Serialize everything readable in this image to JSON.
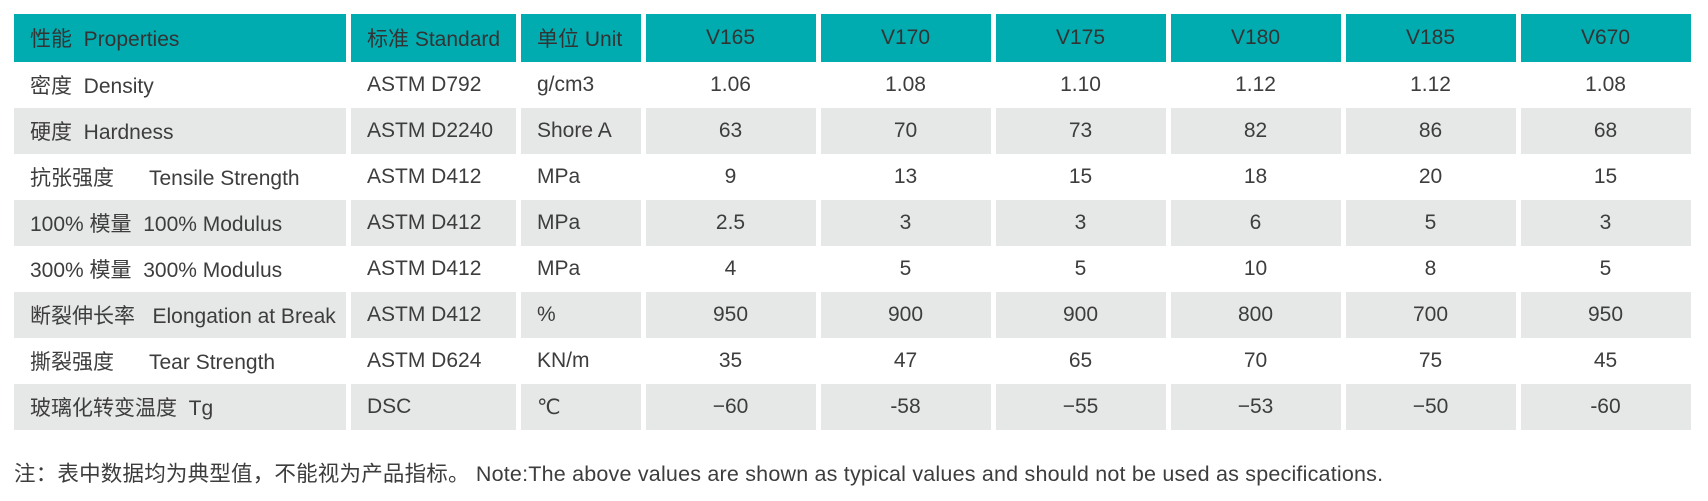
{
  "theme": {
    "header_bg": "#00acb0",
    "header_text": "#333333",
    "row_bg": "#ffffff",
    "row_alt_bg": "#e6e7e7",
    "body_text": "#3d3d3d"
  },
  "table": {
    "columns": [
      {
        "key": "property",
        "label": "性能  Properties"
      },
      {
        "key": "standard",
        "label": "标准 Standard"
      },
      {
        "key": "unit",
        "label": "单位 Unit"
      },
      {
        "key": "v165",
        "label": "V165"
      },
      {
        "key": "v170",
        "label": "V170"
      },
      {
        "key": "v175",
        "label": "V175"
      },
      {
        "key": "v180",
        "label": "V180"
      },
      {
        "key": "v185",
        "label": "V185"
      },
      {
        "key": "v670",
        "label": "V670"
      }
    ],
    "rows": [
      {
        "property": "密度  Density",
        "standard": "ASTM D792",
        "unit": "g/cm3",
        "values": [
          "1.06",
          "1.08",
          "1.10",
          "1.12",
          "1.12",
          "1.08"
        ]
      },
      {
        "property": "硬度  Hardness",
        "standard": "ASTM D2240",
        "unit": "Shore A",
        "values": [
          "63",
          "70",
          "73",
          "82",
          "86",
          "68"
        ]
      },
      {
        "property": "抗张强度      Tensile Strength",
        "standard": "ASTM D412",
        "unit": "MPa",
        "values": [
          "9",
          "13",
          "15",
          "18",
          "20",
          "15"
        ]
      },
      {
        "property": "100% 模量  100% Modulus",
        "standard": "ASTM D412",
        "unit": "MPa",
        "values": [
          "2.5",
          "3",
          "3",
          "6",
          "5",
          "3"
        ]
      },
      {
        "property": "300% 模量  300% Modulus",
        "standard": "ASTM D412",
        "unit": "MPa",
        "values": [
          "4",
          "5",
          "5",
          "10",
          "8",
          "5"
        ]
      },
      {
        "property": "断裂伸长率   Elongation at Break",
        "standard": "ASTM D412",
        "unit": "%",
        "values": [
          "950",
          "900",
          "900",
          "800",
          "700",
          "950"
        ]
      },
      {
        "property": "撕裂强度      Tear Strength",
        "standard": "ASTM D624",
        "unit": "KN/m",
        "values": [
          "35",
          "47",
          "65",
          "70",
          "75",
          "45"
        ]
      },
      {
        "property": "玻璃化转变温度  Tg",
        "standard": "DSC",
        "unit": "℃",
        "values": [
          "−60",
          "-58",
          "−55",
          "−53",
          "−50",
          "-60"
        ]
      }
    ]
  },
  "note": "注：表中数据均为典型值，不能视为产品指标。 Note:The above values are shown as typical values and should not be used as specifications."
}
